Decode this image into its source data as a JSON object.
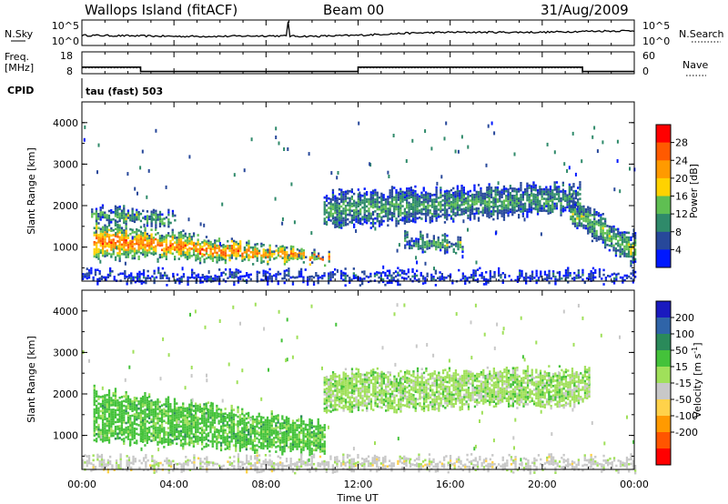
{
  "header": {
    "station": "Wallops Island (fitACF)",
    "beam": "Beam 00",
    "date": "31/Aug/2009"
  },
  "noise_panel": {
    "left_label": "N.Sky",
    "right_label": "N.Search",
    "left_ticks": [
      "10^5",
      "10^0"
    ],
    "right_ticks": [
      "10^5",
      "10^0"
    ]
  },
  "freq_panel": {
    "left_label_1": "Freq.",
    "left_label_2": "[MHz]",
    "right_label": "Nave",
    "left_ticks": [
      "18",
      "8"
    ],
    "right_ticks": [
      "60",
      "0"
    ],
    "cpid_label": "CPID",
    "cpid_text": "tau (fast) 503"
  },
  "power_panel": {
    "ylabel": "Slant Range [km]",
    "cbar_label": "Power [dB]",
    "yticks": [
      "4000",
      "3000",
      "2000",
      "1000"
    ],
    "cbar_ticks": [
      "28",
      "24",
      "20",
      "16",
      "12",
      "8",
      "4"
    ],
    "cbar_colors": [
      "#ff0000",
      "#ff5a00",
      "#ff9a00",
      "#ffd200",
      "#5fbf52",
      "#2f8a6a",
      "#27489a",
      "#0018ff"
    ]
  },
  "velocity_panel": {
    "ylabel": "Slant Range [km]",
    "cbar_label_main": "Velocity [m s",
    "cbar_label_sup": "-1",
    "cbar_label_end": "]",
    "yticks": [
      "4000",
      "3000",
      "2000",
      "1000"
    ],
    "cbar_ticks": [
      "200",
      "100",
      "50",
      "15",
      "-15",
      "-50",
      "-100",
      "-200"
    ],
    "cbar_colors": [
      "#1a1abf",
      "#2f64a8",
      "#2a8a5a",
      "#44c23a",
      "#a0e05a",
      "#c8c8c8",
      "#ffd24a",
      "#ff9a00",
      "#ff5500",
      "#ff0000"
    ]
  },
  "time_axis": {
    "xlabel": "Time UT",
    "ticks": [
      "00:00",
      "04:00",
      "08:00",
      "12:00",
      "16:00",
      "20:00",
      "00:00"
    ]
  },
  "chart_data": {
    "type": "heatmap",
    "x_units": "hours UT",
    "xlim": [
      0,
      24
    ],
    "ylim": [
      180,
      4500
    ],
    "power": {
      "colorbar_range_db": [
        0,
        32
      ],
      "regions": [
        {
          "name": "early_band",
          "t": [
            0.5,
            10.7
          ],
          "r0": [
            1600,
            800
          ],
          "r1": [
            800,
            650
          ],
          "peak": 26
        },
        {
          "name": "upper_early",
          "t": [
            0.4,
            4.0
          ],
          "r0": [
            1950,
            1800
          ],
          "r1": [
            1650,
            1550
          ],
          "peak": 14
        },
        {
          "name": "late_band",
          "t": [
            10.5,
            21.6
          ],
          "r0": [
            2300,
            2500
          ],
          "r1": [
            1500,
            1900
          ],
          "peak": 12
        },
        {
          "name": "evening_low",
          "t": [
            21.2,
            24.0
          ],
          "r0": [
            2100,
            1300
          ],
          "r1": [
            1600,
            600
          ],
          "peak": 15
        },
        {
          "name": "near_range",
          "t": [
            0.0,
            24.0
          ],
          "r0": [
            400,
            400
          ],
          "r1": [
            200,
            200
          ],
          "peak": 6
        },
        {
          "name": "mid_patch",
          "t": [
            14.0,
            16.5
          ],
          "r0": [
            1300,
            1200
          ],
          "r1": [
            1000,
            900
          ],
          "peak": 14
        }
      ]
    },
    "velocity": {
      "colorbar_range_ms": [
        -200,
        200
      ],
      "regions": [
        {
          "name": "early_green",
          "t": [
            0.5,
            10.5
          ],
          "r0": [
            2100,
            1300
          ],
          "r1": [
            900,
            600
          ],
          "v": 30
        },
        {
          "name": "late_grey",
          "t": [
            10.5,
            22.0
          ],
          "r0": [
            2500,
            2600
          ],
          "r1": [
            1600,
            1800
          ],
          "v": 0
        },
        {
          "name": "near_range_gold",
          "t": [
            0.0,
            24.0
          ],
          "r0": [
            450,
            450
          ],
          "r1": [
            200,
            200
          ],
          "v": -30
        }
      ]
    },
    "noise_sky_trace": {
      "x_hours": [
        0,
        2,
        4,
        6,
        8,
        10,
        12,
        14,
        16,
        18,
        20,
        22,
        24
      ],
      "log10_level": [
        2.0,
        1.9,
        1.8,
        1.8,
        1.9,
        1.8,
        2.0,
        2.4,
        2.6,
        2.6,
        2.6,
        2.8,
        2.9
      ]
    },
    "frequency_mhz": {
      "x_hours": [
        0,
        2.55,
        2.55,
        12.0,
        12.0,
        21.75,
        21.75,
        24
      ],
      "values": [
        11.0,
        11.0,
        9.0,
        9.0,
        11.0,
        11.0,
        9.0,
        9.0
      ]
    },
    "nave": {
      "x_hours": [
        0,
        2.55,
        2.55,
        12.0,
        12.0,
        21.75,
        21.75,
        24
      ],
      "values": [
        16,
        16,
        0,
        0,
        16,
        16,
        0,
        0
      ]
    }
  }
}
